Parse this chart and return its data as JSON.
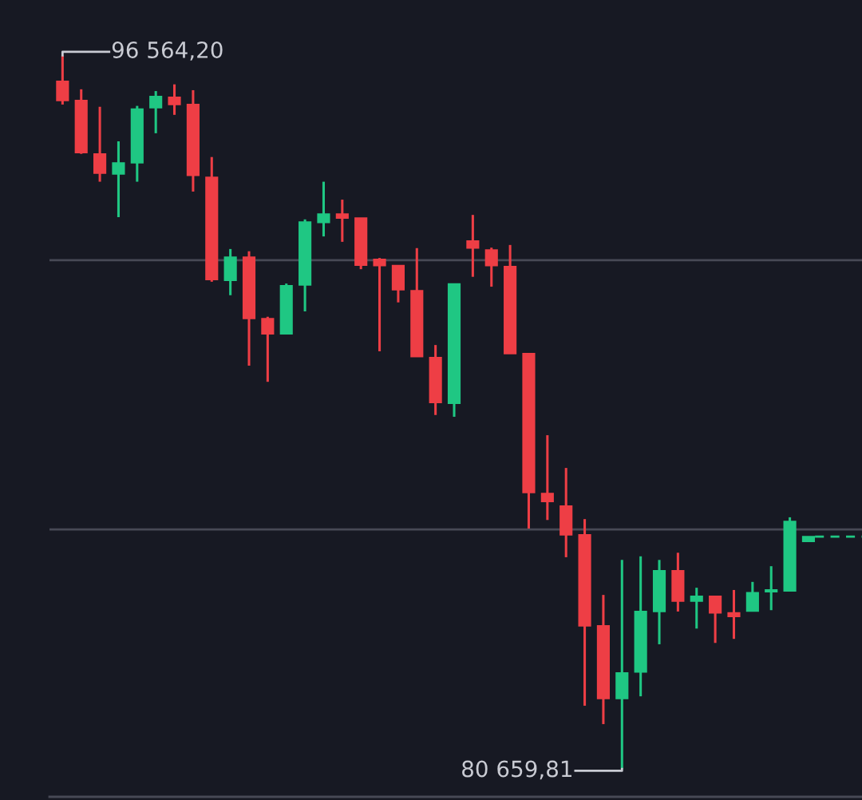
{
  "chart_data": {
    "type": "candlestick",
    "categories": [
      null,
      null,
      null,
      null,
      null,
      null,
      null,
      null,
      null,
      null,
      null,
      null,
      null,
      null,
      null,
      null,
      null,
      null,
      null,
      null,
      null,
      null,
      null,
      null,
      null,
      null,
      null,
      null,
      null,
      null,
      null,
      null,
      null,
      null,
      null,
      null,
      null,
      null,
      null,
      null,
      null
    ],
    "ohlc": [
      [
        95990,
        96564.2,
        95470,
        95560
      ],
      [
        95560,
        95810,
        94370,
        94400
      ],
      [
        94370,
        95420,
        93750,
        93940
      ],
      [
        93920,
        94650,
        92960,
        94170
      ],
      [
        94170,
        95440,
        93750,
        95370
      ],
      [
        95400,
        95770,
        94830,
        95650
      ],
      [
        95630,
        95920,
        95240,
        95470
      ],
      [
        95470,
        95790,
        93530,
        93890
      ],
      [
        93850,
        94300,
        91520,
        91570
      ],
      [
        91550,
        92250,
        91220,
        92070
      ],
      [
        92070,
        92200,
        89650,
        90700
      ],
      [
        90700,
        90740,
        89290,
        90360
      ],
      [
        90360,
        91480,
        90360,
        91430
      ],
      [
        91450,
        92910,
        90860,
        92850
      ],
      [
        92840,
        93750,
        92530,
        93030
      ],
      [
        93030,
        93350,
        92410,
        92940
      ],
      [
        92940,
        92940,
        91800,
        91890
      ],
      [
        92020,
        92050,
        89970,
        91880
      ],
      [
        91880,
        91880,
        91060,
        91340
      ],
      [
        91320,
        92270,
        89850,
        89850
      ],
      [
        89830,
        90110,
        88550,
        88830
      ],
      [
        88810,
        91480,
        88510,
        91470
      ],
      [
        92430,
        93010,
        91630,
        92270
      ],
      [
        92230,
        92280,
        91410,
        91880
      ],
      [
        91860,
        92340,
        89920,
        89920
      ],
      [
        89920,
        89920,
        86020,
        86820
      ],
      [
        86800,
        88100,
        86210,
        86620
      ],
      [
        86520,
        87370,
        85380,
        85880
      ],
      [
        85880,
        86230,
        82070,
        83850
      ],
      [
        83850,
        84540,
        81660,
        82230
      ],
      [
        82230,
        85320,
        80659.81,
        82800
      ],
      [
        82820,
        85400,
        82280,
        84170
      ],
      [
        84170,
        85320,
        83440,
        85080
      ],
      [
        85080,
        85480,
        84170,
        84400
      ],
      [
        84400,
        84700,
        83790,
        84510
      ],
      [
        84510,
        84510,
        83470,
        84140
      ],
      [
        84140,
        84650,
        83560,
        84060
      ],
      [
        84180,
        84830,
        84180,
        84590
      ],
      [
        84610,
        85180,
        84200,
        84650
      ],
      [
        84630,
        86270,
        84630,
        86180
      ],
      [
        85730,
        85840,
        85730,
        85840
      ]
    ],
    "colors": [
      "#ee3e45",
      "#ee3e45",
      "#ee3e45",
      "#1fc783",
      "#1fc783",
      "#1fc783",
      "#ee3e45",
      "#ee3e45",
      "#ee3e45",
      "#1fc783",
      "#ee3e45",
      "#ee3e45",
      "#1fc783",
      "#1fc783",
      "#1fc783",
      "#ee3e45",
      "#ee3e45",
      "#ee3e45",
      "#ee3e45",
      "#ee3e45",
      "#ee3e45",
      "#1fc783",
      "#ee3e45",
      "#ee3e45",
      "#ee3e45",
      "#ee3e45",
      "#ee3e45",
      "#ee3e45",
      "#ee3e45",
      "#ee3e45",
      "#1fc783",
      "#1fc783",
      "#1fc783",
      "#ee3e45",
      "#1fc783",
      "#ee3e45",
      "#ee3e45",
      "#1fc783",
      "#1fc783",
      "#1fc783",
      "#1fc783"
    ],
    "ylim": [
      80040,
      97800
    ],
    "yticks": [
      {
        "value": 86000,
        "label": null
      },
      {
        "value": 92000,
        "label": null
      }
    ],
    "grid": "y",
    "annotations": [
      "96 564,20",
      "80 659,81"
    ]
  }
}
